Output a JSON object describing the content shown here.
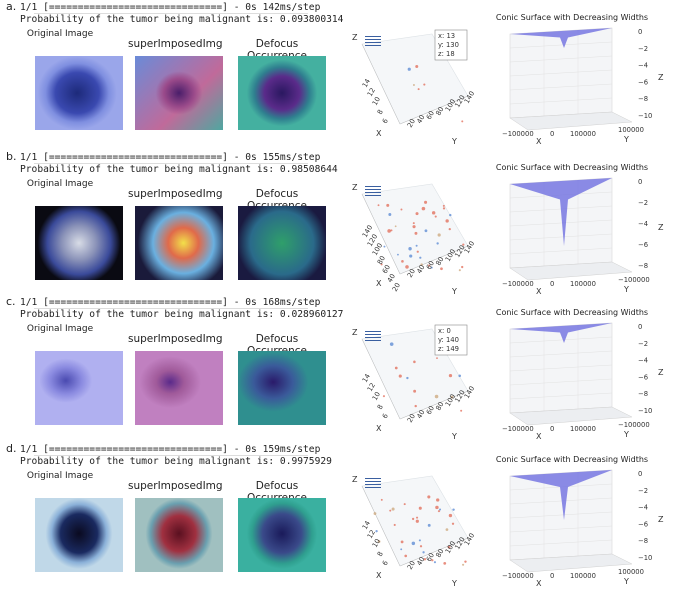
{
  "panels": [
    {
      "letter": "a.",
      "line1": "1/1 [==============================] - 0s 142ms/step",
      "line2": "Probability of the tumor being malignant is: 0.093800314",
      "labels": {
        "original": "Original Image",
        "superimposed": "superImposedImg",
        "defocus": "Defocus Occurrence"
      },
      "tooltip": {
        "x": "x: 13",
        "y": "y: 130",
        "z": "z: 18"
      },
      "scatter_ticks": {
        "y_axis": [
          "14",
          "12",
          "10",
          "8",
          "6"
        ],
        "x_axis": [
          "140",
          "120",
          "100",
          "80",
          "60",
          "40",
          "20"
        ],
        "z": "Z",
        "x": "X",
        "y": "Y"
      },
      "cone": {
        "title": "Conic Surface with Decreasing Widths",
        "z_ticks": [
          "0",
          "−2",
          "−4",
          "−6",
          "−8",
          "−10"
        ],
        "x_ticks": [
          "−100000",
          "0",
          "100000"
        ],
        "y_tick": "100000",
        "z": "Z",
        "x": "X",
        "y": "Y"
      }
    },
    {
      "letter": "b.",
      "line1": "1/1 [==============================] - 0s 155ms/step",
      "line2": "Probability of the tumor being malignant is: 0.98508644",
      "labels": {
        "original": "Original Image",
        "superimposed": "superImposedImg",
        "defocus": "Defocus Occurrence"
      },
      "tooltip": null,
      "scatter_ticks": {
        "y_axis": [
          "140",
          "120",
          "100",
          "80",
          "60",
          "40",
          "20"
        ],
        "x_axis": [
          "140",
          "120",
          "100",
          "80",
          "60",
          "40",
          "20"
        ],
        "z": "Z",
        "x": "X",
        "y": "Y"
      },
      "cone": {
        "title": "Conic Surface with Decreasing Widths",
        "z_ticks": [
          "0",
          "−2",
          "−4",
          "−6",
          "−8"
        ],
        "x_ticks": [
          "−100000",
          "0",
          "100000"
        ],
        "y_tick": "−100000",
        "z": "Z",
        "x": "X",
        "y": "Y"
      }
    },
    {
      "letter": "c.",
      "line1": "1/1 [==============================] - 0s 168ms/step",
      "line2": "Probability of the tumor being malignant is: 0.028960127",
      "labels": {
        "original": "Original Image",
        "superimposed": "superImposedImg",
        "defocus": "Defocus Occurrence"
      },
      "tooltip": {
        "x": "x: 0",
        "y": "y: 140",
        "z": "z: 149"
      },
      "scatter_ticks": {
        "y_axis": [
          "14",
          "12",
          "10",
          "8",
          "6"
        ],
        "x_axis": [
          "140",
          "120",
          "100",
          "80",
          "60",
          "40",
          "20"
        ],
        "z": "Z",
        "x": "X",
        "y": "Y"
      },
      "cone": {
        "title": "Conic Surface with Decreasing Widths",
        "z_ticks": [
          "0",
          "−2",
          "−4",
          "−6",
          "−8",
          "−10"
        ],
        "x_ticks": [
          "−100000",
          "0",
          "100000"
        ],
        "y_tick": "−100000",
        "z": "Z",
        "x": "X",
        "y": "Y"
      }
    },
    {
      "letter": "d.",
      "line1": "1/1 [==============================] - 0s 159ms/step",
      "line2": "Probability of the tumor being malignant is: 0.9975929",
      "labels": {
        "original": "Original Image",
        "superimposed": "superImposedImg",
        "defocus": "Defocus Occurrence"
      },
      "tooltip": null,
      "scatter_ticks": {
        "y_axis": [
          "14",
          "12",
          "10",
          "8",
          "6"
        ],
        "x_axis": [
          "140",
          "120",
          "100",
          "80",
          "60",
          "40",
          "20"
        ],
        "z": "Z",
        "x": "X",
        "y": "Y"
      },
      "cone": {
        "title": "Conic Surface with Decreasing Widths",
        "z_ticks": [
          "0",
          "−2",
          "−4",
          "−6",
          "−8",
          "−10"
        ],
        "x_ticks": [
          "−100000",
          "0",
          "100000"
        ],
        "y_tick": "100000",
        "z": "Z",
        "x": "X",
        "y": "Y"
      }
    }
  ],
  "colors": {
    "cone": "#6f6fe0",
    "accent_red": "#e0604a",
    "accent_blue": "#4c7fd0"
  }
}
